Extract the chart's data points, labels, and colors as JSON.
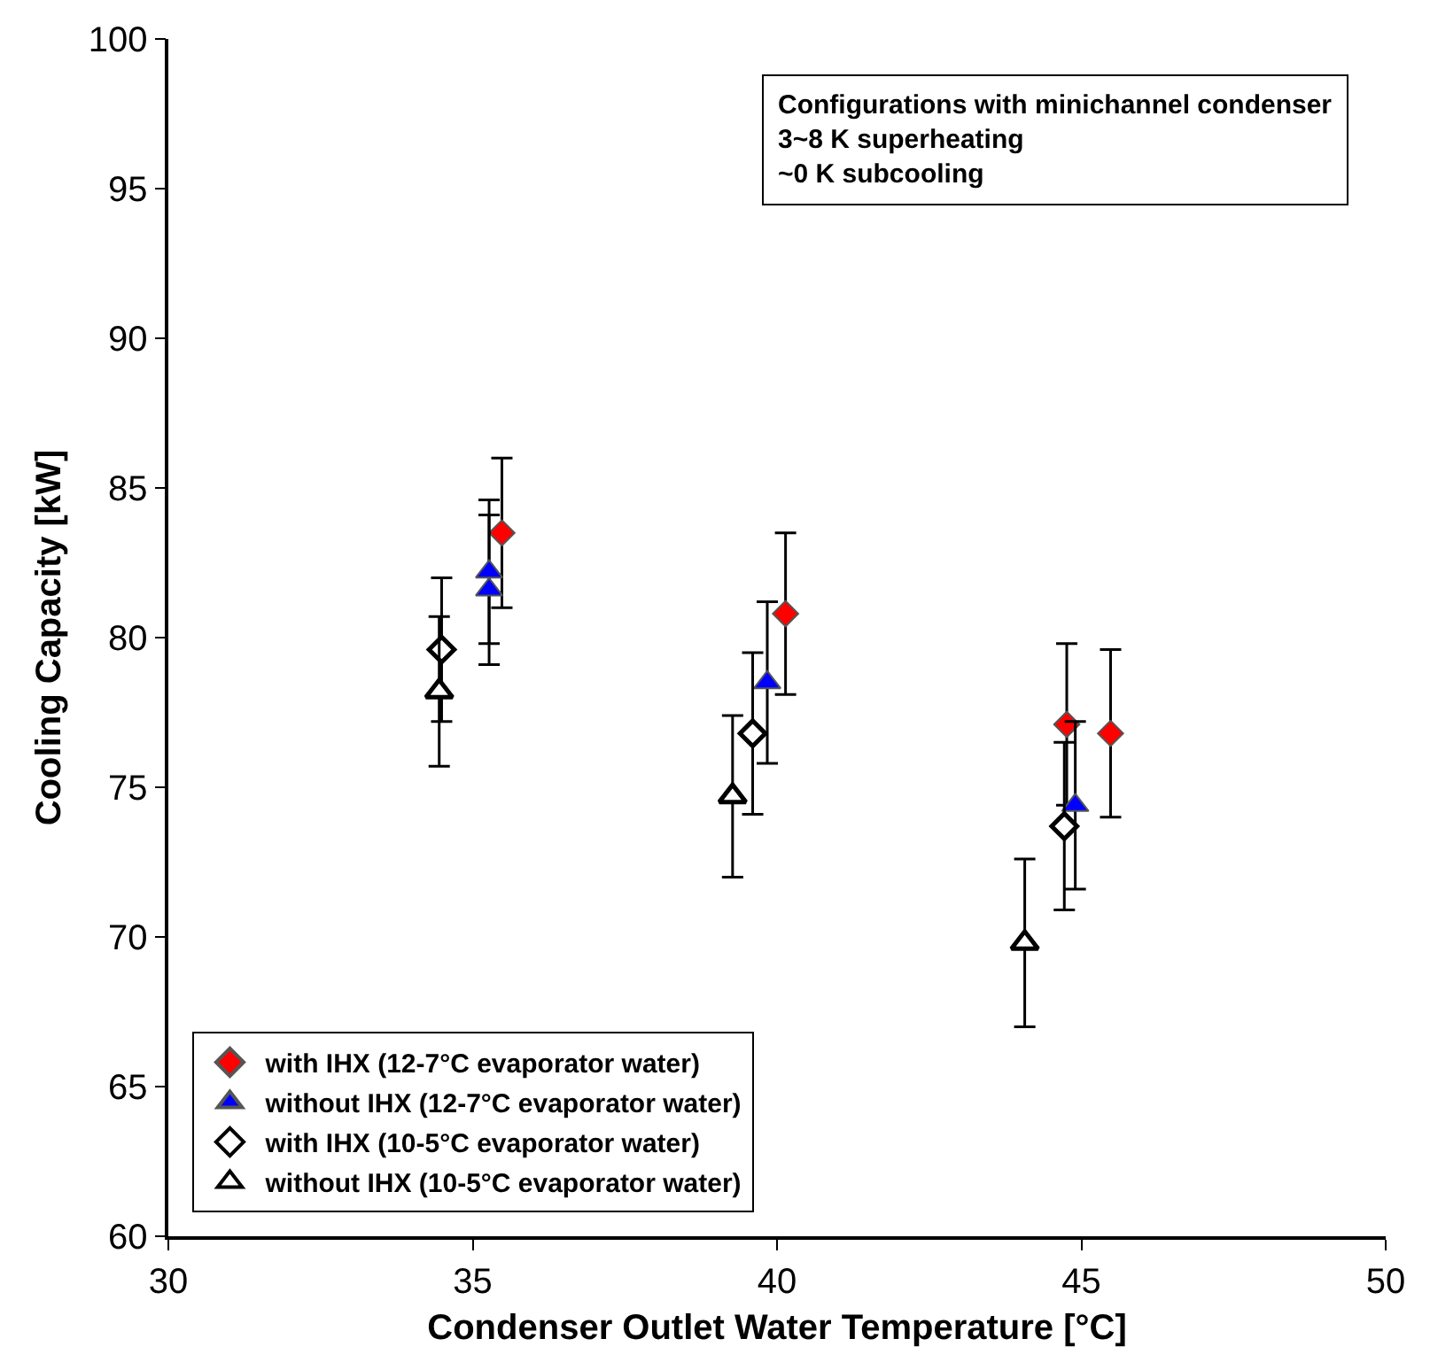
{
  "chart_data": {
    "type": "scatter",
    "xlabel": "Condenser Outlet Water Temperature [°C]",
    "ylabel": "Cooling Capacity [kW]",
    "xlim": [
      30,
      50
    ],
    "xticks": [
      30,
      35,
      40,
      45,
      50
    ],
    "ylim": [
      60,
      100
    ],
    "yticks": [
      60,
      65,
      70,
      75,
      80,
      85,
      90,
      95,
      100
    ],
    "legend": "bottom left",
    "annotations": [
      "Configurations with minichannel condenser\n3~8 K superheating\n~0 K subcooling"
    ],
    "series": [
      {
        "name": "with IHX (12-7°C evaporator water)",
        "color": "#ff0000",
        "marker": "diamond",
        "x": [
          35.48,
          40.14,
          44.76,
          45.48
        ],
        "values": [
          83.5,
          80.8,
          77.1,
          76.8
        ],
        "errors": [
          2.5,
          2.7,
          2.7,
          2.8
        ]
      },
      {
        "name": "without IHX (12-7°C evaporator water)",
        "color": "#0000ff",
        "marker": "triangle",
        "x": [
          35.27,
          35.27,
          39.84,
          44.9
        ],
        "values": [
          82.2,
          81.6,
          78.5,
          74.4
        ],
        "errors": [
          2.4,
          2.5,
          2.7,
          2.8
        ]
      },
      {
        "name": "with IHX (10-5°C evaporator water)",
        "color": "#ffffff",
        "marker": "diamond",
        "x": [
          34.49,
          39.6,
          44.72
        ],
        "values": [
          79.6,
          76.8,
          73.7
        ],
        "errors": [
          2.4,
          2.7,
          2.8
        ]
      },
      {
        "name": "without IHX (10-5°C evaporator water)",
        "color": "#ffffff",
        "marker": "triangle",
        "x": [
          34.45,
          39.27,
          44.07
        ],
        "values": [
          78.2,
          74.7,
          69.8
        ],
        "errors": [
          2.5,
          2.7,
          2.8
        ]
      }
    ]
  }
}
